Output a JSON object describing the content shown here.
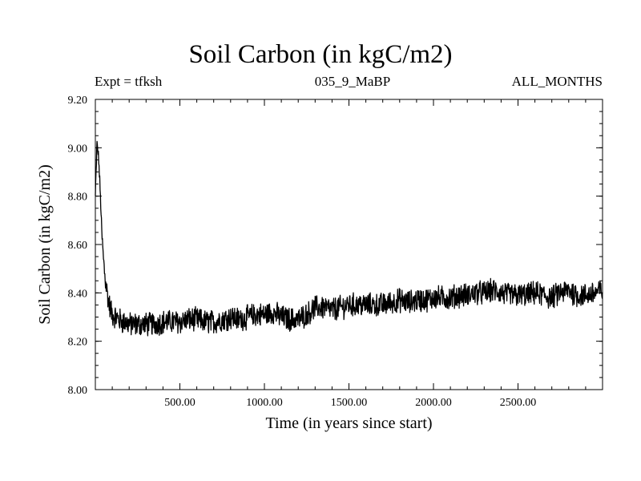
{
  "chart_data": {
    "type": "line",
    "title": "Soil Carbon (in kgC/m2)",
    "subtitle_left": "Expt = tfksh",
    "subtitle_center": "035_9_MaBP",
    "subtitle_right": "ALL_MONTHS",
    "xlabel": "Time (in years since start)",
    "ylabel": "Soil Carbon (in kgC/m2)",
    "xlim": [
      0,
      3000
    ],
    "ylim": [
      8.0,
      9.2
    ],
    "x_ticks": [
      500,
      1000,
      1500,
      2000,
      2500
    ],
    "x_tick_labels": [
      "500.00",
      "1000.00",
      "1500.00",
      "2000.00",
      "2500.00"
    ],
    "y_ticks": [
      8.0,
      8.2,
      8.4,
      8.6,
      8.8,
      9.0,
      9.2
    ],
    "y_tick_labels": [
      "8.00",
      "8.20",
      "8.40",
      "8.60",
      "8.80",
      "9.00",
      "9.20"
    ],
    "series": [
      {
        "name": "Soil Carbon",
        "color": "#000000",
        "x": [
          0,
          10,
          20,
          30,
          40,
          50,
          60,
          70,
          80,
          90,
          100,
          120,
          140,
          160,
          180,
          200,
          250,
          300,
          350,
          400,
          450,
          500,
          550,
          600,
          650,
          700,
          750,
          800,
          850,
          900,
          950,
          1000,
          1050,
          1100,
          1150,
          1200,
          1250,
          1300,
          1350,
          1400,
          1450,
          1500,
          1550,
          1600,
          1650,
          1700,
          1750,
          1800,
          1850,
          1900,
          1950,
          2000,
          2050,
          2100,
          2150,
          2200,
          2250,
          2300,
          2350,
          2400,
          2450,
          2500,
          2550,
          2600,
          2650,
          2700,
          2750,
          2800,
          2850,
          2900,
          2950,
          3000
        ],
        "values": [
          8.8,
          9.02,
          8.95,
          8.8,
          8.62,
          8.52,
          8.45,
          8.4,
          8.36,
          8.33,
          8.31,
          8.3,
          8.29,
          8.28,
          8.28,
          8.27,
          8.27,
          8.27,
          8.27,
          8.28,
          8.28,
          8.28,
          8.29,
          8.29,
          8.28,
          8.28,
          8.29,
          8.3,
          8.29,
          8.3,
          8.31,
          8.31,
          8.32,
          8.3,
          8.29,
          8.29,
          8.31,
          8.34,
          8.34,
          8.33,
          8.34,
          8.35,
          8.35,
          8.35,
          8.35,
          8.35,
          8.36,
          8.37,
          8.36,
          8.37,
          8.37,
          8.38,
          8.38,
          8.38,
          8.39,
          8.39,
          8.4,
          8.4,
          8.41,
          8.4,
          8.39,
          8.39,
          8.39,
          8.4,
          8.39,
          8.38,
          8.4,
          8.41,
          8.39,
          8.39,
          8.4,
          8.41
        ]
      }
    ]
  }
}
